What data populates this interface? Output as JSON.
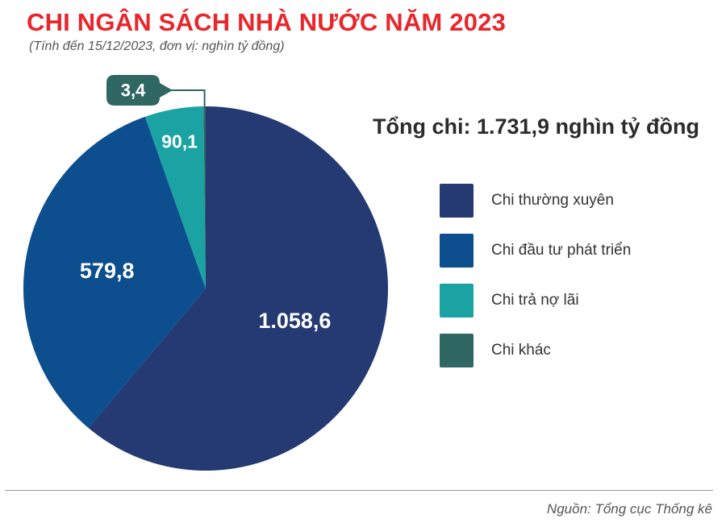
{
  "header": {
    "title": "CHI NGÂN SÁCH NHÀ NƯỚC NĂM 2023",
    "subtitle": "(Tính đến 15/12/2023, đơn vị: nghìn tỷ đồng)"
  },
  "total_text": "Tổng chi: 1.731,9 nghìn tỷ đồng",
  "source": "Nguồn: Tổng cục Thống kê",
  "chart_data": {
    "type": "pie",
    "title": "CHI NGÂN SÁCH NHÀ NƯỚC NĂM 2023",
    "unit": "nghìn tỷ đồng",
    "total": 1731.9,
    "slices": [
      {
        "label": "Chi thường xuyên",
        "value": 1058.6,
        "value_label": "1.058,6",
        "color": "#253a72"
      },
      {
        "label": "Chi đầu tư phát triển",
        "value": 579.8,
        "value_label": "579,8",
        "color": "#0c4e8e"
      },
      {
        "label": "Chi trả nợ lãi",
        "value": 90.1,
        "value_label": "90,1",
        "color": "#1aa3a2"
      },
      {
        "label": "Chi khác",
        "value": 3.4,
        "value_label": "3,4",
        "color": "#2f6763"
      }
    ],
    "legend_position": "right"
  }
}
